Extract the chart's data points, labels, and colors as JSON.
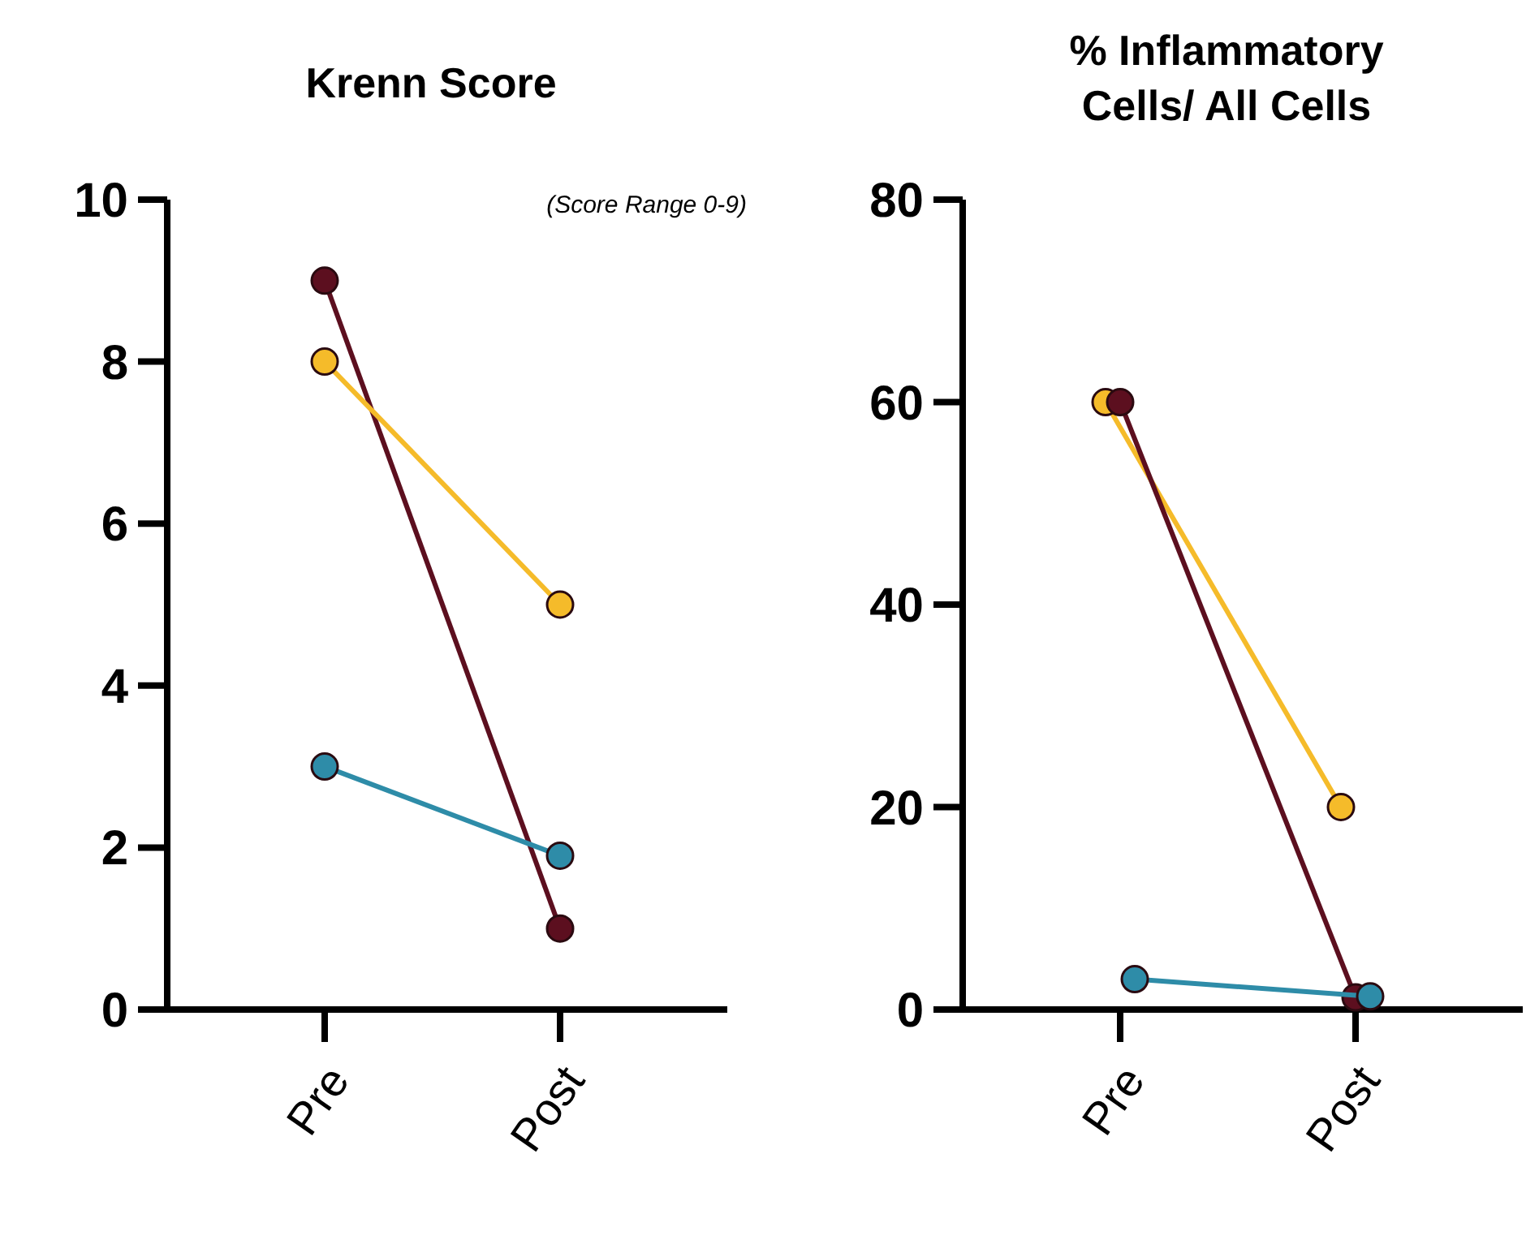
{
  "chart_data": [
    {
      "type": "line",
      "title": "Krenn Score",
      "categories": [
        "Pre",
        "Post"
      ],
      "ylim": [
        0,
        10
      ],
      "yticks": [
        0,
        2,
        4,
        6,
        8,
        10
      ],
      "marker": "circle",
      "annotations": [
        "(Score Range 0-9)"
      ],
      "series": [
        {
          "color": "#5c0f1f",
          "values": [
            9,
            1
          ]
        },
        {
          "color": "#f5bb2a",
          "values": [
            8,
            5
          ]
        },
        {
          "color": "#2e8ca8",
          "values": [
            3,
            1.9
          ]
        }
      ]
    },
    {
      "type": "line",
      "title": "% Inflammatory Cells/ All Cells",
      "categories": [
        "Pre",
        "Post"
      ],
      "ylim": [
        0,
        80
      ],
      "yticks": [
        0,
        20,
        40,
        60,
        80
      ],
      "marker": "circle",
      "series": [
        {
          "color": "#f5bb2a",
          "values": [
            60,
            20
          ]
        },
        {
          "color": "#5c0f1f",
          "values": [
            60,
            1.2
          ]
        },
        {
          "color": "#2e8ca8",
          "values": [
            3,
            1.3
          ]
        }
      ]
    }
  ]
}
